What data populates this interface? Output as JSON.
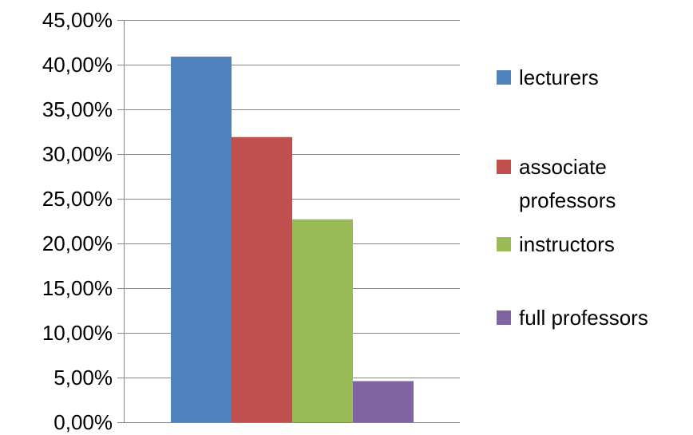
{
  "chart_data": {
    "type": "bar",
    "title": "",
    "xlabel": "",
    "ylabel": "",
    "categories": [
      ""
    ],
    "series": [
      {
        "name": "lecturers",
        "values": [
          0.409
        ],
        "color": "#4F81BD"
      },
      {
        "name": "associate professors",
        "values": [
          0.319
        ],
        "color": "#C0504D"
      },
      {
        "name": "instructors",
        "values": [
          0.227
        ],
        "color": "#9BBB59"
      },
      {
        "name": "full professors",
        "values": [
          0.046
        ],
        "color": "#8064A2"
      }
    ],
    "ylim": [
      0,
      0.45
    ],
    "yticks": [
      0,
      0.05,
      0.1,
      0.15,
      0.2,
      0.25,
      0.3,
      0.35,
      0.4,
      0.45
    ],
    "ytick_labels": [
      "0,00%",
      "5,00%",
      "10,00%",
      "15,00%",
      "20,00%",
      "25,00%",
      "30,00%",
      "35,00%",
      "40,00%",
      "45,00%"
    ],
    "grid": true,
    "legend": "right"
  }
}
